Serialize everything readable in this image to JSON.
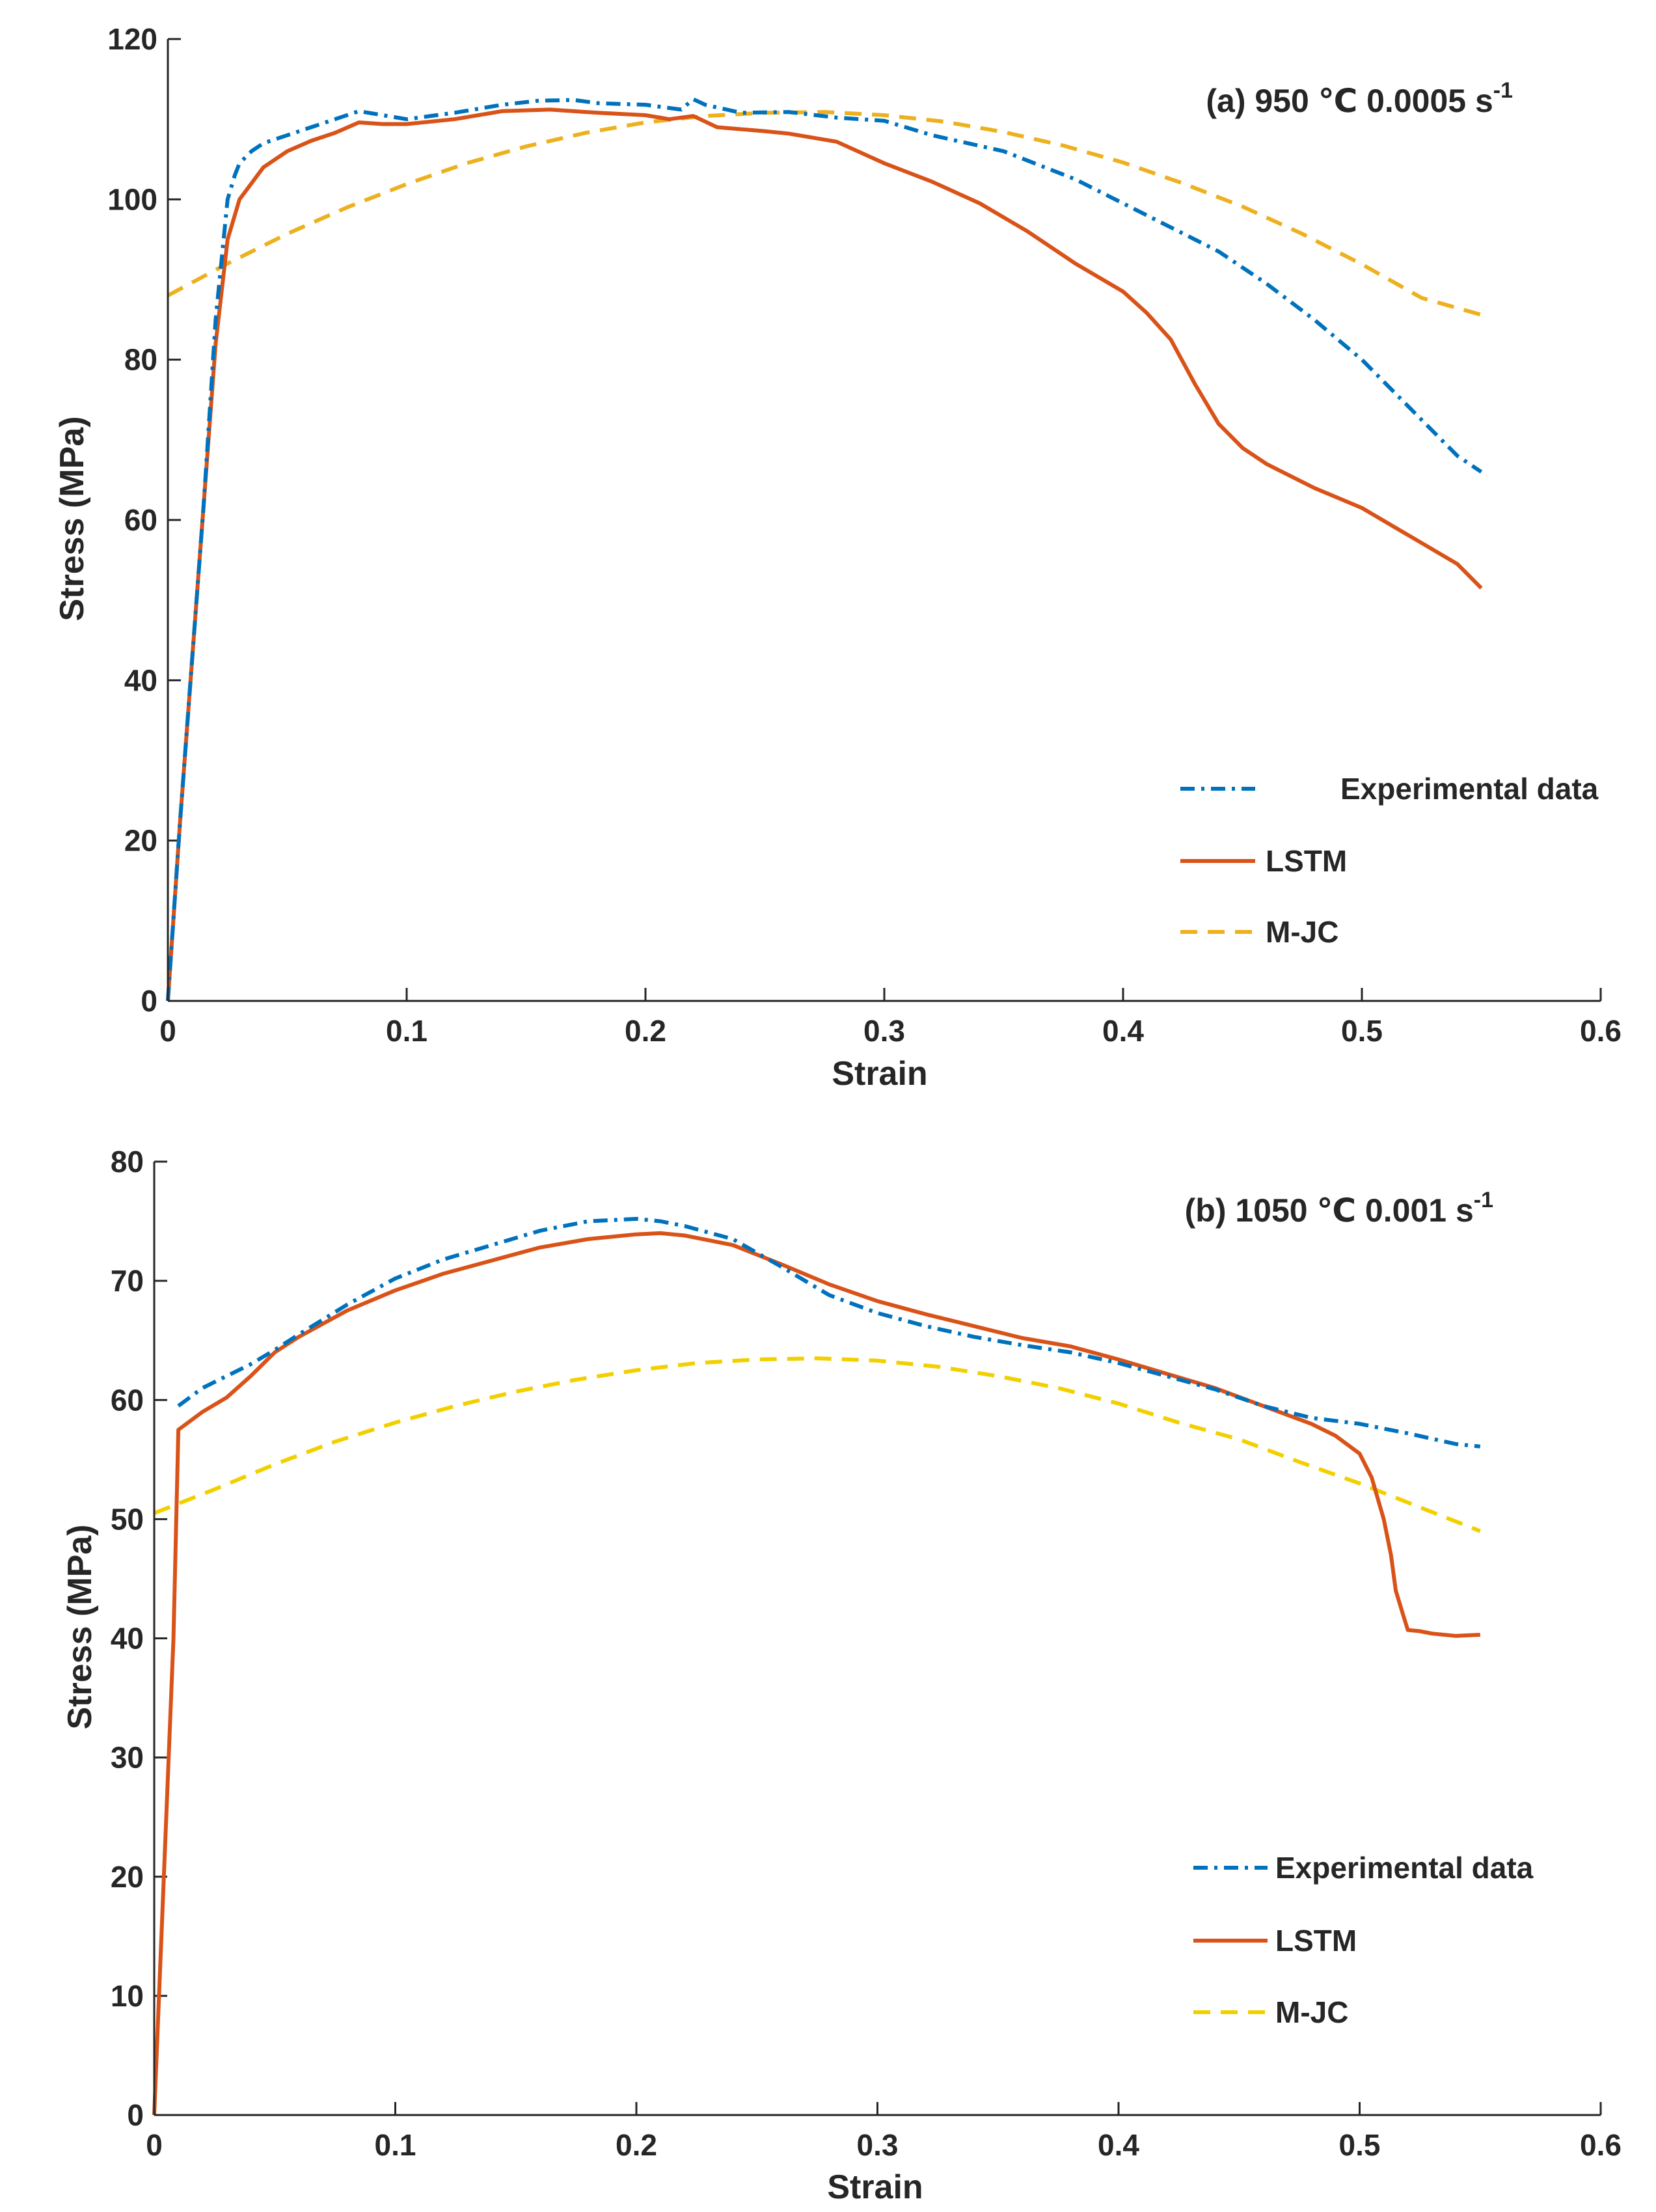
{
  "colors": {
    "experimental": "#0072BD",
    "lstm": "#D95319",
    "mjc_a": "#EDB120",
    "mjc_b": "#F2D000",
    "axis": "#262626"
  },
  "chart_data": [
    {
      "type": "line",
      "title": "(a) 950 ℃ 0.0005 s",
      "title_superscript": "-1",
      "xlabel": "Strain",
      "ylabel": "Stress (MPa)",
      "xlim": [
        0,
        0.6
      ],
      "ylim": [
        0,
        120
      ],
      "xticks": [
        0,
        0.1,
        0.2,
        0.3,
        0.4,
        0.5,
        0.6
      ],
      "xtick_labels": [
        "0",
        "0.1",
        "0.2",
        "0.3",
        "0.4",
        "0.5",
        "0.6"
      ],
      "yticks": [
        0,
        20,
        40,
        60,
        80,
        100,
        120
      ],
      "ytick_labels": [
        "0",
        "20",
        "40",
        "60",
        "80",
        "100",
        "120"
      ],
      "legend_position": "bottom-right",
      "series": [
        {
          "name": "Experimental data",
          "style": "dash-dot",
          "color": "#0072BD",
          "x": [
            0,
            0.005,
            0.01,
            0.015,
            0.02,
            0.025,
            0.028,
            0.03,
            0.035,
            0.04,
            0.05,
            0.06,
            0.07,
            0.08,
            0.09,
            0.1,
            0.12,
            0.14,
            0.155,
            0.17,
            0.18,
            0.2,
            0.215,
            0.22,
            0.225,
            0.24,
            0.26,
            0.28,
            0.3,
            0.32,
            0.35,
            0.38,
            0.4,
            0.42,
            0.44,
            0.46,
            0.48,
            0.5,
            0.52,
            0.54,
            0.55
          ],
          "y": [
            0,
            22,
            42,
            62,
            85,
            100,
            103,
            104.5,
            106,
            107,
            108,
            109,
            110,
            111,
            110.5,
            110,
            110.8,
            111.8,
            112.3,
            112.4,
            112,
            111.8,
            111.2,
            112.5,
            111.8,
            110.8,
            110.9,
            110.2,
            109.8,
            108,
            106,
            102.5,
            99.5,
            96.5,
            93.5,
            89.5,
            85,
            80,
            74,
            68,
            66
          ]
        },
        {
          "name": "LSTM",
          "style": "solid",
          "color": "#D95319",
          "x": [
            0,
            0.005,
            0.01,
            0.015,
            0.02,
            0.025,
            0.03,
            0.035,
            0.04,
            0.05,
            0.06,
            0.07,
            0.08,
            0.09,
            0.1,
            0.12,
            0.14,
            0.16,
            0.18,
            0.2,
            0.21,
            0.22,
            0.23,
            0.25,
            0.26,
            0.28,
            0.3,
            0.32,
            0.34,
            0.36,
            0.38,
            0.4,
            0.41,
            0.42,
            0.43,
            0.44,
            0.45,
            0.46,
            0.47,
            0.48,
            0.5,
            0.52,
            0.54,
            0.55
          ],
          "y": [
            0,
            22,
            42,
            62,
            82,
            95,
            100,
            102,
            104,
            106,
            107.3,
            108.3,
            109.6,
            109.4,
            109.4,
            110,
            111,
            111.2,
            110.8,
            110.5,
            110,
            110.4,
            109,
            108.5,
            108.2,
            107.2,
            104.5,
            102.2,
            99.5,
            96,
            92,
            88.5,
            85.8,
            82.5,
            77,
            72,
            69,
            67,
            65.5,
            64,
            61.5,
            58,
            54.5,
            51.5
          ]
        },
        {
          "name": "M-JC",
          "style": "dashed",
          "color": "#EDB120",
          "x": [
            0,
            0.025,
            0.05,
            0.075,
            0.1,
            0.125,
            0.15,
            0.175,
            0.2,
            0.225,
            0.25,
            0.275,
            0.3,
            0.325,
            0.35,
            0.375,
            0.4,
            0.425,
            0.45,
            0.475,
            0.5,
            0.525,
            0.55
          ],
          "y": [
            88,
            92,
            95.7,
            99,
            101.9,
            104.5,
            106.6,
            108.3,
            109.6,
            110.4,
            110.8,
            110.9,
            110.5,
            109.7,
            108.4,
            106.7,
            104.6,
            102,
            99.1,
            95.7,
            91.9,
            87.7,
            85.6
          ]
        }
      ]
    },
    {
      "type": "line",
      "title": "(b) 1050 ℃ 0.001 s",
      "title_superscript": "-1",
      "xlabel": "Strain",
      "ylabel": "Stress (MPa)",
      "xlim": [
        0,
        0.6
      ],
      "ylim": [
        0,
        80
      ],
      "xticks": [
        0,
        0.1,
        0.2,
        0.3,
        0.4,
        0.5,
        0.6
      ],
      "xtick_labels": [
        "0",
        "0.1",
        "0.2",
        "0.3",
        "0.4",
        "0.5",
        "0.6"
      ],
      "yticks": [
        0,
        10,
        20,
        30,
        40,
        50,
        60,
        70,
        80
      ],
      "ytick_labels": [
        "0",
        "10",
        "20",
        "30",
        "40",
        "50",
        "60",
        "70",
        "80"
      ],
      "legend_position": "bottom-right",
      "series": [
        {
          "name": "Experimental data",
          "style": "dash-dot",
          "color": "#0072BD",
          "x": [
            0.01,
            0.02,
            0.03,
            0.04,
            0.05,
            0.06,
            0.08,
            0.1,
            0.12,
            0.14,
            0.16,
            0.18,
            0.2,
            0.21,
            0.22,
            0.24,
            0.26,
            0.28,
            0.3,
            0.32,
            0.34,
            0.36,
            0.38,
            0.4,
            0.42,
            0.44,
            0.46,
            0.48,
            0.5,
            0.52,
            0.54,
            0.55
          ],
          "y": [
            59.5,
            61,
            62,
            63,
            64.2,
            65.5,
            68,
            70.2,
            71.8,
            73,
            74.2,
            75,
            75.2,
            75,
            74.6,
            73.5,
            71.2,
            68.8,
            67.3,
            66.2,
            65.3,
            64.6,
            64,
            63.1,
            62,
            60.9,
            59.5,
            58.5,
            58,
            57.2,
            56.3,
            56.1
          ]
        },
        {
          "name": "LSTM",
          "style": "solid",
          "color": "#D95319",
          "x": [
            0,
            0.005,
            0.008,
            0.01,
            0.02,
            0.03,
            0.04,
            0.05,
            0.06,
            0.08,
            0.1,
            0.12,
            0.14,
            0.16,
            0.18,
            0.2,
            0.21,
            0.22,
            0.24,
            0.26,
            0.28,
            0.3,
            0.32,
            0.34,
            0.36,
            0.38,
            0.4,
            0.42,
            0.44,
            0.46,
            0.48,
            0.49,
            0.5,
            0.505,
            0.51,
            0.513,
            0.515,
            0.518,
            0.52,
            0.525,
            0.53,
            0.54,
            0.55
          ],
          "y": [
            0,
            25,
            40,
            57.5,
            59,
            60.2,
            62,
            64,
            65.3,
            67.5,
            69.2,
            70.6,
            71.7,
            72.8,
            73.5,
            73.9,
            74,
            73.8,
            73,
            71.4,
            69.7,
            68.3,
            67.2,
            66.2,
            65.2,
            64.5,
            63.4,
            62.2,
            61,
            59.5,
            58,
            57,
            55.5,
            53.5,
            50,
            47,
            44,
            42,
            40.7,
            40.6,
            40.4,
            40.2,
            40.3
          ]
        },
        {
          "name": "M-JC",
          "style": "dashed",
          "color": "#F2D000",
          "x": [
            0,
            0.025,
            0.05,
            0.075,
            0.1,
            0.125,
            0.15,
            0.175,
            0.2,
            0.225,
            0.25,
            0.275,
            0.3,
            0.325,
            0.35,
            0.375,
            0.4,
            0.425,
            0.45,
            0.475,
            0.5,
            0.525,
            0.55
          ],
          "y": [
            50.5,
            52.5,
            54.6,
            56.5,
            58.1,
            59.5,
            60.7,
            61.7,
            62.5,
            63.1,
            63.4,
            63.5,
            63.3,
            62.8,
            62,
            61,
            59.7,
            58.1,
            56.7,
            54.8,
            53,
            51,
            49
          ]
        }
      ]
    }
  ]
}
